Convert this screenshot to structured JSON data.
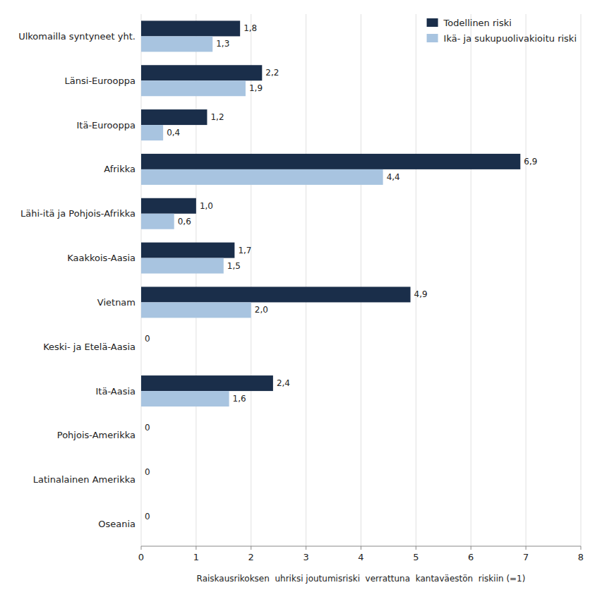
{
  "chart_data": {
    "type": "bar",
    "orientation": "horizontal",
    "categories": [
      "Ulkomailla syntyneet yht.",
      "Länsi-Eurooppa",
      "Itä-Eurooppa",
      "Afrikka",
      "Lähi-itä ja Pohjois-Afrikka",
      "Kaakkois-Aasia",
      "Vietnam",
      "Keski- ja Etelä-Aasia",
      "Itä-Aasia",
      "Pohjois-Amerikka",
      "Latinalainen Amerikka",
      "Oseania"
    ],
    "series": [
      {
        "name": "Todellinen riski",
        "color": "#1a2e4a",
        "values": [
          1.8,
          2.2,
          1.2,
          6.9,
          1.0,
          1.7,
          4.9,
          0,
          2.4,
          0,
          0,
          0
        ],
        "value_labels": [
          "1,8",
          "2,2",
          "1,2",
          "6,9",
          "1,0",
          "1,7",
          "4,9",
          "0",
          "2,4",
          "0",
          "0",
          "0"
        ]
      },
      {
        "name": "Ikä- ja sukupuolivakioitu riski",
        "color": "#a8c4e0",
        "values": [
          1.3,
          1.9,
          0.4,
          4.4,
          0.6,
          1.5,
          2.0,
          0,
          1.6,
          0,
          0,
          0
        ],
        "value_labels": [
          "1,3",
          "1,9",
          "0,4",
          "4,4",
          "0,6",
          "1,5",
          "2,0",
          null,
          "1,6",
          null,
          null,
          null
        ]
      }
    ],
    "xlabel": "Raiskausrikoksen  uhriksi joutumisriski  verrattuna  kantaväestön  riskiin (=1)",
    "xlim": [
      0,
      8
    ],
    "xticks": [
      0,
      1,
      2,
      3,
      4,
      5,
      6,
      7,
      8
    ],
    "grid": true,
    "legend": "upper right",
    "data_labels": true
  }
}
